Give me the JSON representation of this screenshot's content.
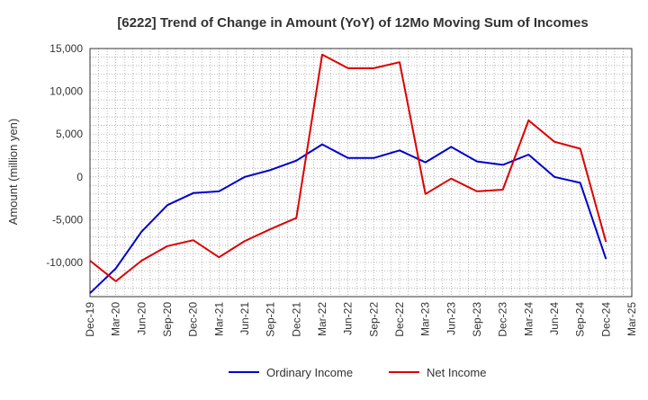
{
  "chart_data": {
    "type": "line",
    "title": "[6222]  Trend of Change in Amount (YoY) of 12Mo Moving Sum of Incomes",
    "xlabel": "",
    "ylabel": "Amount (million yen)",
    "categories": [
      "Dec-19",
      "Mar-20",
      "Jun-20",
      "Sep-20",
      "Dec-20",
      "Mar-21",
      "Jun-21",
      "Sep-21",
      "Dec-21",
      "Mar-22",
      "Jun-22",
      "Sep-22",
      "Dec-22",
      "Mar-23",
      "Jun-23",
      "Sep-23",
      "Dec-23",
      "Mar-24",
      "Jun-24",
      "Sep-24",
      "Dec-24",
      "Mar-25"
    ],
    "ylim": [
      -14000,
      15000
    ],
    "yticks": [
      15000,
      10000,
      5000,
      0,
      -5000,
      -10000
    ],
    "ytick_labels": [
      "15,000",
      "10,000",
      "5,000",
      "0",
      "-5,000",
      "-10,000"
    ],
    "grid": true,
    "legend_position": "bottom",
    "series": [
      {
        "name": "Ordinary Income",
        "color": "#0000cc",
        "values": [
          -13600,
          -10700,
          -6400,
          -3300,
          -1900,
          -1700,
          0,
          800,
          1900,
          3800,
          2200,
          2200,
          3100,
          1700,
          3500,
          1800,
          1400,
          2600,
          0,
          -700,
          -9600,
          null
        ]
      },
      {
        "name": "Net Income",
        "color": "#dd0000",
        "values": [
          -9800,
          -12200,
          -9800,
          -8100,
          -7400,
          -9400,
          -7500,
          -6100,
          -4800,
          14300,
          12700,
          12700,
          13400,
          -2000,
          -200,
          -1700,
          -1500,
          6600,
          4100,
          3300,
          -7600,
          null
        ]
      }
    ]
  }
}
